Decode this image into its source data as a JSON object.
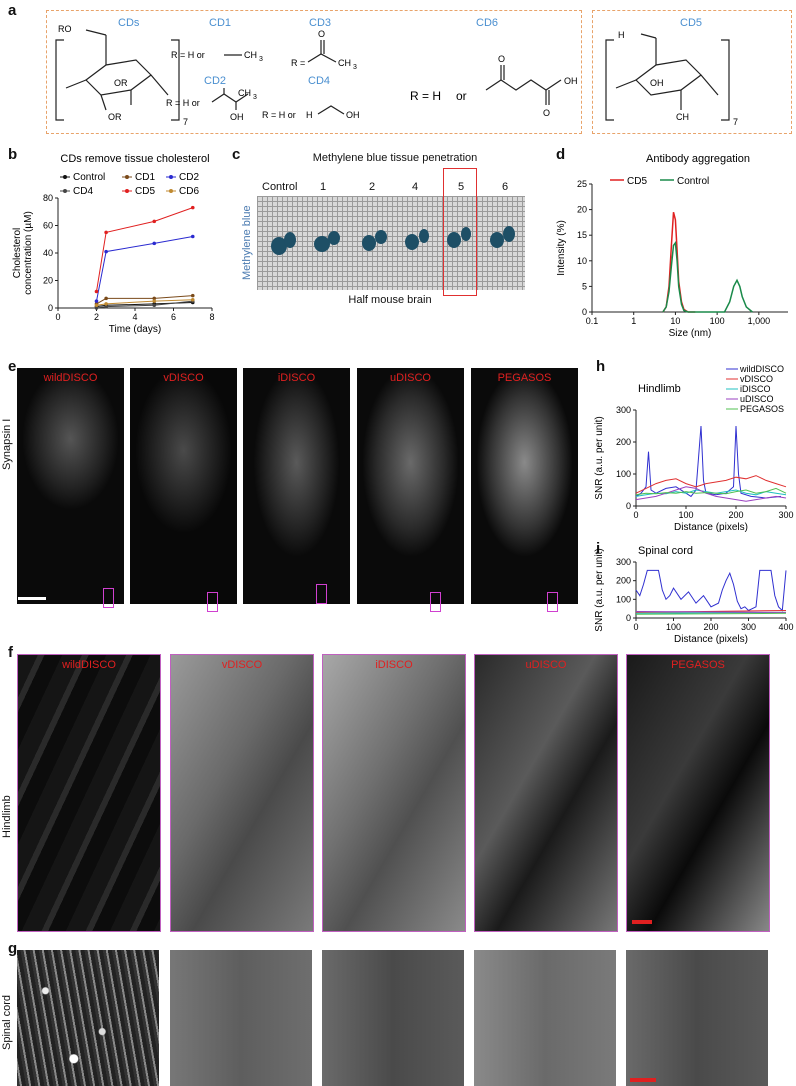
{
  "panel_labels": [
    "a",
    "b",
    "c",
    "d",
    "e",
    "f",
    "g",
    "h",
    "i"
  ],
  "panel_a": {
    "cds_label": "CDs",
    "cd1": "CD1",
    "cd2": "CD2",
    "cd3": "CD3",
    "cd4": "CD4",
    "cd5": "CD5",
    "cd6": "CD6",
    "cd1_r": "R = H or",
    "cd1_group": "CH",
    "cd2_r": "R = H or",
    "cd3_r": "R =",
    "cd4_r": "R = H or",
    "cd6_r": "R = H",
    "or_word": "or",
    "ro": "RO",
    "or1": "OR",
    "or2": "OR",
    "subscript_7": "7",
    "oh": "OH",
    "o_atom": "O",
    "h3c": "H",
    "ch3": "CH",
    "three": "3",
    "cd5_oh": "OH"
  },
  "chart_data": [
    {
      "type": "line",
      "title": "CDs remove tissue cholesterol",
      "xlabel": "Time (days)",
      "ylabel": "Cholesterol concentration (µM)",
      "ylabel_lines": [
        "Cholesterol",
        "concentration (µM)"
      ],
      "xlim": [
        0,
        8
      ],
      "ylim": [
        0,
        80
      ],
      "xticks": [
        0,
        2,
        4,
        6,
        8
      ],
      "yticks": [
        0,
        20,
        40,
        60,
        80
      ],
      "legend": [
        "Control",
        "CD1",
        "CD2",
        "CD4",
        "CD5",
        "CD6"
      ],
      "x": [
        2,
        2.5,
        5,
        7
      ],
      "series": [
        {
          "name": "Control",
          "color": "#111111",
          "values": [
            1,
            2,
            3,
            4
          ]
        },
        {
          "name": "CD1",
          "color": "#7a4a1a",
          "values": [
            3,
            7,
            7,
            9
          ]
        },
        {
          "name": "CD2",
          "color": "#2a2ad0",
          "values": [
            5,
            41,
            47,
            52
          ]
        },
        {
          "name": "CD4",
          "color": "#444444",
          "values": [
            0,
            1,
            2,
            5
          ]
        },
        {
          "name": "CD5",
          "color": "#e02020",
          "values": [
            12,
            55,
            63,
            73
          ]
        },
        {
          "name": "CD6",
          "color": "#c08a30",
          "values": [
            2,
            3,
            5,
            6
          ]
        }
      ]
    },
    {
      "type": "line",
      "title": "Antibody aggregation",
      "xlabel": "Size (nm)",
      "ylabel": "Intensity (%)",
      "xscale": "log",
      "xlim": [
        0.1,
        5000
      ],
      "ylim": [
        0,
        25
      ],
      "xticks": [
        "0.1",
        "1",
        "10",
        "100",
        "1,000"
      ],
      "yticks": [
        0,
        5,
        10,
        15,
        20,
        25
      ],
      "legend": [
        "CD5",
        "Control"
      ],
      "series": [
        {
          "name": "CD5",
          "color": "#e02020",
          "x": [
            5,
            6,
            7,
            8,
            9,
            10,
            11,
            12,
            14,
            16,
            20,
            30
          ],
          "values": [
            0,
            1,
            5,
            13,
            19.5,
            18,
            12,
            6,
            2,
            0.5,
            0,
            0
          ]
        },
        {
          "name": "Control",
          "color": "#1a8a4a",
          "x": [
            5,
            6,
            7,
            8,
            9,
            10,
            11,
            12,
            14,
            16,
            20,
            150,
            200,
            250,
            300,
            350,
            400,
            500,
            700
          ],
          "values": [
            0,
            1,
            4,
            9,
            13,
            13.5,
            10,
            5,
            1.5,
            0.3,
            0,
            0,
            2,
            5,
            6.2,
            5,
            3,
            1,
            0
          ]
        }
      ]
    },
    {
      "type": "line",
      "title": "Hindlimb",
      "xlabel": "Distance (pixels)",
      "ylabel": "SNR (a.u. per unit)",
      "xlim": [
        0,
        300
      ],
      "ylim": [
        0,
        300
      ],
      "xticks": [
        0,
        100,
        200,
        300
      ],
      "yticks": [
        0,
        100,
        200,
        300
      ],
      "legend": [
        "wildDISCO",
        "vDISCO",
        "iDISCO",
        "uDISCO",
        "PEGASOS"
      ],
      "series": [
        {
          "name": "wildDISCO",
          "color": "#3030d0",
          "x": [
            0,
            10,
            20,
            25,
            30,
            40,
            60,
            80,
            100,
            110,
            120,
            130,
            135,
            140,
            160,
            180,
            195,
            200,
            205,
            210,
            230,
            260,
            290
          ],
          "values": [
            30,
            40,
            60,
            170,
            50,
            40,
            55,
            60,
            40,
            30,
            50,
            250,
            80,
            40,
            35,
            40,
            60,
            250,
            100,
            40,
            30,
            25,
            30
          ]
        },
        {
          "name": "vDISCO",
          "color": "#e03030",
          "x": [
            0,
            20,
            40,
            60,
            80,
            100,
            120,
            140,
            160,
            180,
            200,
            220,
            240,
            260,
            280,
            300
          ],
          "values": [
            40,
            55,
            70,
            80,
            85,
            70,
            60,
            70,
            75,
            80,
            90,
            85,
            95,
            80,
            70,
            60
          ]
        },
        {
          "name": "iDISCO",
          "color": "#20c0c0",
          "x": [
            0,
            20,
            40,
            60,
            80,
            100,
            120,
            140,
            160,
            180,
            200,
            220,
            240,
            260,
            280,
            300
          ],
          "values": [
            30,
            35,
            40,
            38,
            45,
            40,
            50,
            45,
            40,
            45,
            50,
            40,
            35,
            45,
            40,
            35
          ]
        },
        {
          "name": "uDISCO",
          "color": "#9a40c0",
          "x": [
            0,
            20,
            40,
            60,
            80,
            100,
            120,
            140,
            160,
            180,
            200,
            220,
            240,
            260,
            280,
            300
          ],
          "values": [
            20,
            25,
            30,
            40,
            50,
            60,
            55,
            40,
            30,
            25,
            20,
            15,
            20,
            25,
            30,
            25
          ]
        },
        {
          "name": "PEGASOS",
          "color": "#50c050",
          "x": [
            0,
            20,
            40,
            60,
            80,
            100,
            120,
            140,
            160,
            180,
            200,
            220,
            240,
            260,
            280,
            300
          ],
          "values": [
            35,
            40,
            38,
            42,
            40,
            45,
            40,
            42,
            40,
            38,
            45,
            50,
            40,
            45,
            55,
            40
          ]
        }
      ]
    },
    {
      "type": "line",
      "title": "Spinal cord",
      "xlabel": "Distance (pixels)",
      "ylabel": "SNR (a.u. per unit)",
      "xlim": [
        0,
        400
      ],
      "ylim": [
        0,
        300
      ],
      "xticks": [
        0,
        100,
        200,
        300,
        400
      ],
      "yticks": [
        0,
        100,
        200,
        300
      ],
      "series": [
        {
          "name": "wildDISCO",
          "color": "#3030d0",
          "x": [
            0,
            10,
            20,
            30,
            40,
            50,
            60,
            70,
            80,
            90,
            100,
            120,
            140,
            160,
            180,
            200,
            220,
            230,
            240,
            250,
            260,
            270,
            280,
            290,
            300,
            320,
            330,
            340,
            350,
            360,
            370,
            380,
            390,
            400
          ],
          "values": [
            150,
            120,
            180,
            255,
            255,
            255,
            255,
            150,
            100,
            120,
            160,
            100,
            140,
            80,
            120,
            60,
            80,
            150,
            200,
            240,
            180,
            90,
            50,
            60,
            40,
            60,
            255,
            255,
            255,
            255,
            120,
            60,
            40,
            255
          ]
        },
        {
          "name": "vDISCO",
          "color": "#e03030",
          "x": [
            0,
            400
          ],
          "values": [
            30,
            40
          ]
        },
        {
          "name": "iDISCO",
          "color": "#20c0c0",
          "x": [
            0,
            400
          ],
          "values": [
            25,
            30
          ]
        },
        {
          "name": "uDISCO",
          "color": "#9a40c0",
          "x": [
            0,
            400
          ],
          "values": [
            35,
            30
          ]
        },
        {
          "name": "PEGASOS",
          "color": "#50c050",
          "x": [
            0,
            400
          ],
          "values": [
            20,
            25
          ]
        }
      ]
    }
  ],
  "panel_c": {
    "title": "Methylene blue tissue penetration",
    "columns": [
      "Control",
      "1",
      "2",
      "4",
      "5",
      "6"
    ],
    "side_label": "Methylene blue",
    "bottom_label": "Half mouse brain"
  },
  "panel_e": {
    "methods": [
      "wildDISCO",
      "vDISCO",
      "iDISCO",
      "uDISCO",
      "PEGASOS"
    ],
    "row_label": "Synapsin I"
  },
  "panel_f": {
    "methods": [
      "wildDISCO",
      "vDISCO",
      "iDISCO",
      "uDISCO",
      "PEGASOS"
    ],
    "row_label": "Hindlimb"
  },
  "panel_g": {
    "row_label": "Spinal cord"
  }
}
